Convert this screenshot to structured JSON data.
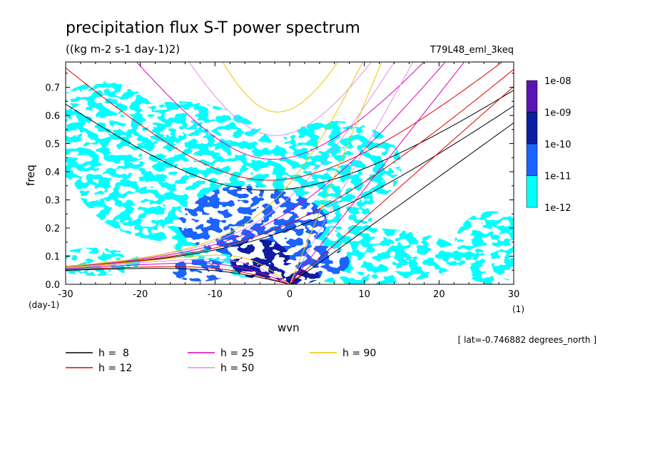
{
  "chart_data": {
    "type": "heatmap",
    "title": "precipitation flux S-T power spectrum",
    "subtitle": "((kg m-2 s-1 day-1)2)",
    "run_label": "T79L48_eml_3keq",
    "xlabel": "wvn",
    "ylabel": "freq",
    "x_unit": "(1)",
    "y_unit": "(day-1)",
    "xlim": [
      -30,
      30
    ],
    "ylim": [
      0,
      0.79
    ],
    "x_ticks": [
      "-30",
      "-20",
      "-10",
      "0",
      "10",
      "20",
      "30"
    ],
    "x_tick_values": [
      -30,
      -20,
      -10,
      0,
      10,
      20,
      30
    ],
    "y_ticks": [
      "0.0",
      "0.1",
      "0.2",
      "0.3",
      "0.4",
      "0.5",
      "0.6",
      "0.7"
    ],
    "y_tick_values": [
      0,
      0.1,
      0.2,
      0.3,
      0.4,
      0.5,
      0.6,
      0.7
    ],
    "colorbar": {
      "labels": [
        "1e-08",
        "1e-09",
        "1e-10",
        "1e-11",
        "1e-12"
      ],
      "colors": [
        "#5a14b4",
        "#0a1ea0",
        "#1a64ff",
        "#00ffff"
      ]
    },
    "blobs": [
      {
        "cx": -25,
        "cy": 0.53,
        "rx": 8,
        "ry": 0.19,
        "level": 0
      },
      {
        "cx": -15,
        "cy": 0.4,
        "rx": 14,
        "ry": 0.25,
        "level": 0
      },
      {
        "cx": -3,
        "cy": 0.22,
        "rx": 14,
        "ry": 0.2,
        "level": 0
      },
      {
        "cx": 6,
        "cy": 0.42,
        "rx": 9,
        "ry": 0.16,
        "level": 0
      },
      {
        "cx": 10,
        "cy": 0.1,
        "rx": 13,
        "ry": 0.1,
        "level": 0
      },
      {
        "cx": 27,
        "cy": 0.13,
        "rx": 5,
        "ry": 0.13,
        "level": 0
      },
      {
        "cx": -26,
        "cy": 0.08,
        "rx": 6,
        "ry": 0.05,
        "level": 0
      },
      {
        "cx": -5,
        "cy": 0.22,
        "rx": 10,
        "ry": 0.12,
        "level": 1
      },
      {
        "cx": -6,
        "cy": 0.29,
        "rx": 6,
        "ry": 0.06,
        "level": 1
      },
      {
        "cx": 3,
        "cy": 0.08,
        "rx": 5,
        "ry": 0.06,
        "level": 1
      },
      {
        "cx": -12,
        "cy": 0.05,
        "rx": 4,
        "ry": 0.04,
        "level": 1
      },
      {
        "cx": -4,
        "cy": 0.09,
        "rx": 4,
        "ry": 0.07,
        "level": 2
      },
      {
        "cx": 1,
        "cy": 0.03,
        "rx": 3,
        "ry": 0.03,
        "level": 2
      }
    ],
    "series": [
      {
        "name": "h =  8",
        "h": 8,
        "color": "#000000"
      },
      {
        "name": "h = 12",
        "h": 12,
        "color": "#e00000"
      },
      {
        "name": "h = 25",
        "h": 25,
        "color": "#dc00b4"
      },
      {
        "name": "h = 50",
        "h": 50,
        "color": "#e68ce6"
      },
      {
        "name": "h = 90",
        "h": 90,
        "color": "#e6c800"
      }
    ],
    "annotation": "[ lat=-0.746882 degrees_north ]"
  }
}
